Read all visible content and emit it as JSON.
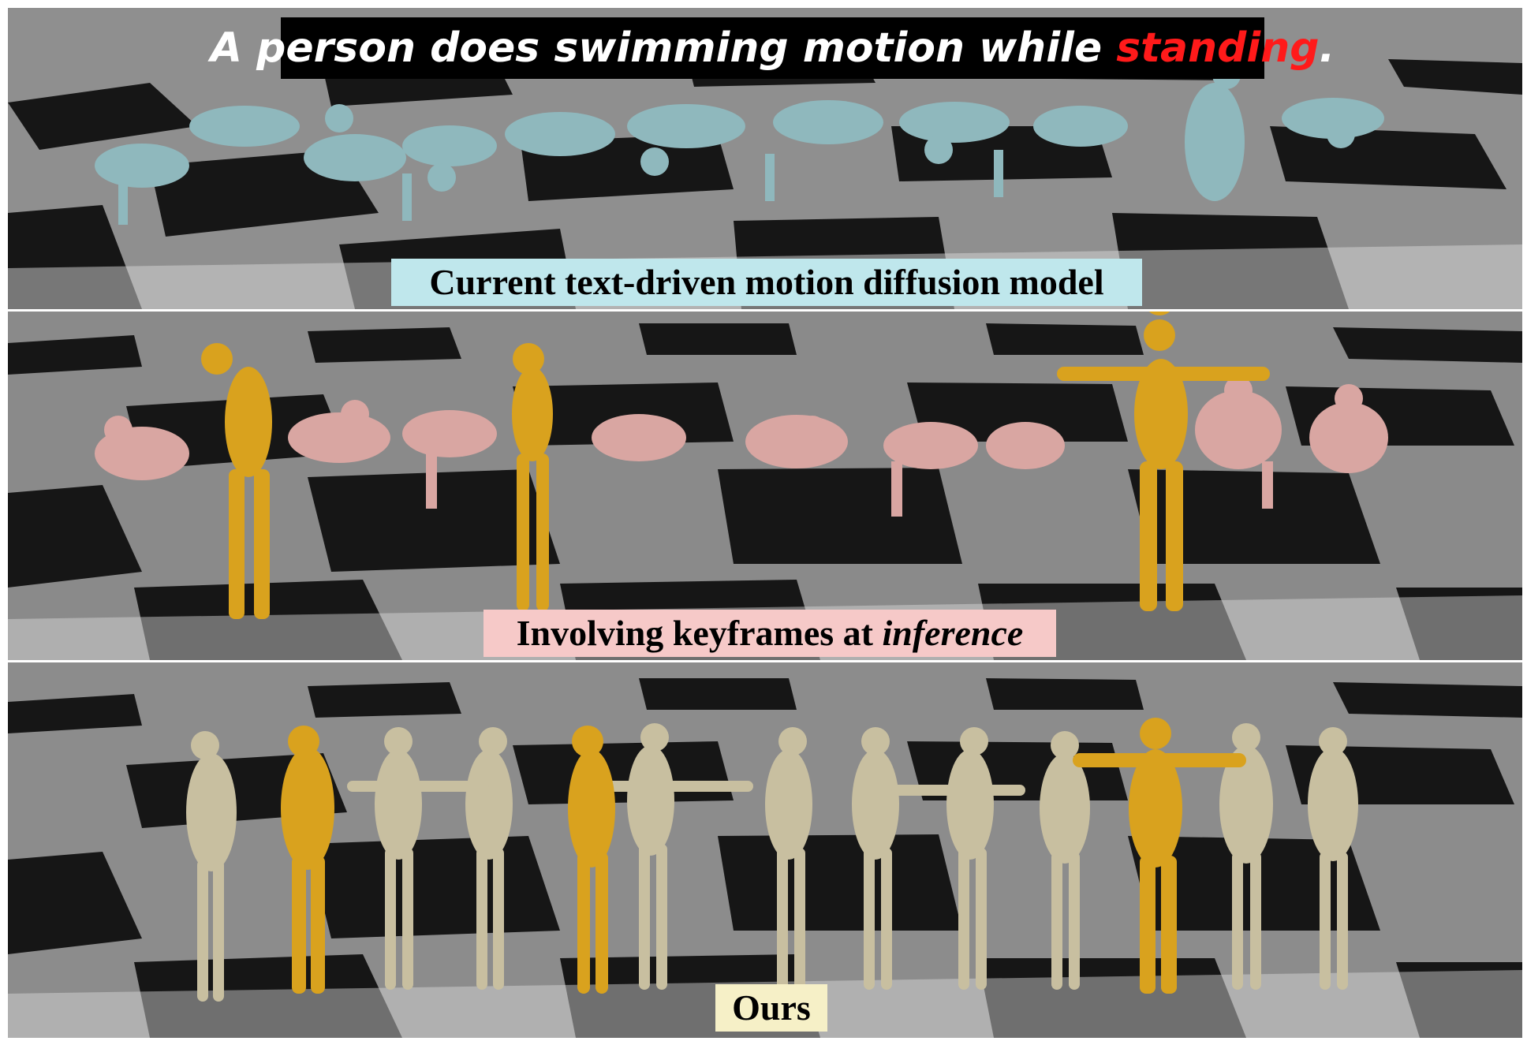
{
  "title": {
    "prefix": "A person does swimming motion while ",
    "highlight": "standing",
    "suffix": "."
  },
  "panels": [
    {
      "label": "Current text-driven motion diffusion model",
      "figure_color": "#8fb8bd"
    },
    {
      "label_prefix": "Involving keyframes at ",
      "label_italic": "inference",
      "figure_color": "#d9a6a2",
      "keyframe_color": "#d9a21e"
    },
    {
      "label": "Ours",
      "figure_color": "#c8bfa0",
      "keyframe_color": "#d9a21e"
    }
  ],
  "colors": {
    "title_highlight": "#ff1a1a",
    "label_cyan": "#bfe7ec",
    "label_pink": "#f6c9c8",
    "label_cream": "#f6f0c7"
  }
}
